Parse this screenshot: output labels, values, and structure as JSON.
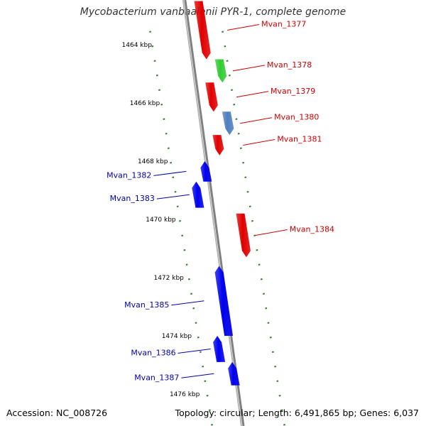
{
  "title": "Mycobacterium vanbaalenii PYR-1, complete genome",
  "footer": {
    "accession": "Accession: NC_008726",
    "summary": "Topology: circular; Length: 6,491,865 bp; Genes: 6,037"
  },
  "colors": {
    "backbone": "#808080",
    "tick": "#2f7f2f",
    "forward_label": "#cc0000",
    "reverse_label": "#0000aa",
    "red": "#e00000",
    "green": "#33cc33",
    "blue": "#0000ee",
    "purple": "#4a3f8c",
    "gray": "#707070",
    "steel": "#4f7fbf",
    "silver": "#bbbbbb"
  },
  "scale_labels": [
    {
      "kbp": 1464,
      "text": "1464 kbp"
    },
    {
      "kbp": 1466,
      "text": "1466 kbp"
    },
    {
      "kbp": 1468,
      "text": "1468 kbp"
    },
    {
      "kbp": 1470,
      "text": "1470 kbp"
    },
    {
      "kbp": 1472,
      "text": "1472 kbp"
    },
    {
      "kbp": 1474,
      "text": "1474 kbp"
    },
    {
      "kbp": 1476,
      "text": "1476 kbp"
    }
  ],
  "genes": [
    {
      "name": "Mvan_1377",
      "strand": "forward",
      "color": "red",
      "start_kbp": 1462.5,
      "end_kbp": 1464.5
    },
    {
      "name": "Mvan_1378",
      "strand": "forward",
      "color": "green",
      "start_kbp": 1464.5,
      "end_kbp": 1465.3
    },
    {
      "name": "Mvan_1379",
      "strand": "forward",
      "color": "red",
      "start_kbp": 1465.3,
      "end_kbp": 1466.3
    },
    {
      "name": "Mvan_1380",
      "strand": "forward",
      "color": "steel",
      "start_kbp": 1466.3,
      "end_kbp": 1467.1
    },
    {
      "name": "Mvan_1381",
      "strand": "forward",
      "color": "red",
      "start_kbp": 1467.1,
      "end_kbp": 1467.8
    },
    {
      "name": "Mvan_1382",
      "strand": "reverse",
      "color": "blue",
      "start_kbp": 1468.0,
      "end_kbp": 1468.7
    },
    {
      "name": "Mvan_1383",
      "strand": "reverse",
      "color": "blue",
      "start_kbp": 1468.7,
      "end_kbp": 1469.6
    },
    {
      "name": "Mvan_1384",
      "strand": "forward",
      "color": "red",
      "start_kbp": 1469.8,
      "end_kbp": 1471.3
    },
    {
      "name": "Mvan_1385",
      "strand": "reverse",
      "color": "blue",
      "start_kbp": 1471.6,
      "end_kbp": 1474.0
    },
    {
      "name": "Mvan_1386",
      "strand": "reverse",
      "color": "blue",
      "start_kbp": 1474.0,
      "end_kbp": 1474.9
    },
    {
      "name": "Mvan_1387",
      "strand": "reverse",
      "color": "blue",
      "start_kbp": 1474.9,
      "end_kbp": 1475.7
    }
  ]
}
